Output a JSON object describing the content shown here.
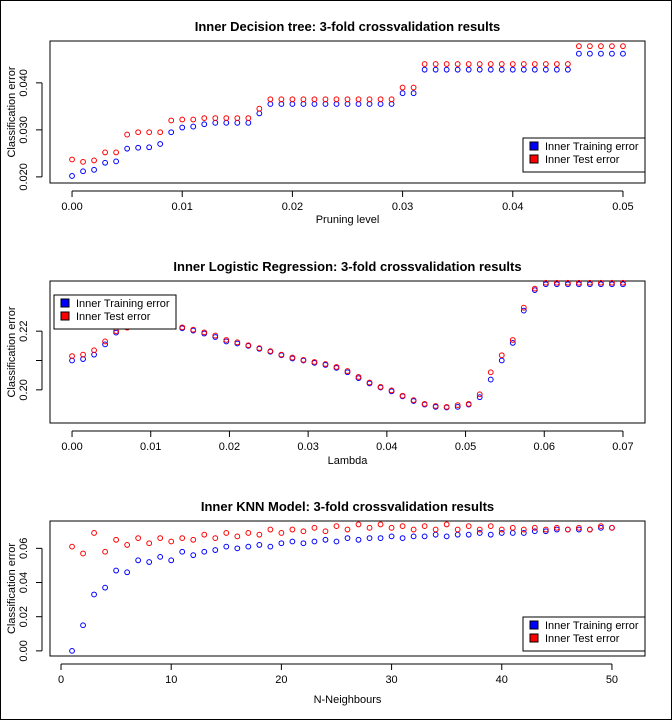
{
  "chart_data": [
    {
      "type": "scatter",
      "title": "Inner Decision tree: 3-fold crossvalidation results",
      "xlabel": "Pruning level",
      "ylabel": "Classification error",
      "xlim": [
        -0.002,
        0.052
      ],
      "ylim": [
        0.0187,
        0.0489
      ],
      "xticks": [
        0.0,
        0.01,
        0.02,
        0.03,
        0.04,
        0.05
      ],
      "xtick_labels": [
        "0.00",
        "0.01",
        "0.02",
        "0.03",
        "0.04",
        "0.05"
      ],
      "yticks": [
        0.02,
        0.03,
        0.04
      ],
      "ytick_labels": [
        "0.020",
        "0.030",
        "0.040"
      ],
      "legend": {
        "position": "bottom-right",
        "entries": [
          "Inner Training error",
          "Inner Test error"
        ]
      },
      "series": [
        {
          "name": "Inner Training error",
          "color": "#0000ff",
          "marker": "open-circle",
          "x": [
            0,
            0.001,
            0.002,
            0.003,
            0.004,
            0.005,
            0.006,
            0.007,
            0.008,
            0.009,
            0.01,
            0.011,
            0.012,
            0.013,
            0.014,
            0.015,
            0.016,
            0.017,
            0.018,
            0.019,
            0.02,
            0.021,
            0.022,
            0.023,
            0.024,
            0.025,
            0.026,
            0.027,
            0.028,
            0.029,
            0.03,
            0.031,
            0.032,
            0.033,
            0.034,
            0.035,
            0.036,
            0.037,
            0.038,
            0.039,
            0.04,
            0.041,
            0.042,
            0.043,
            0.044,
            0.045,
            0.046,
            0.047,
            0.048,
            0.049,
            0.05
          ],
          "y": [
            0.0202,
            0.0212,
            0.0215,
            0.023,
            0.0233,
            0.026,
            0.0262,
            0.0263,
            0.027,
            0.0295,
            0.0305,
            0.0307,
            0.0312,
            0.0315,
            0.0315,
            0.0315,
            0.0315,
            0.0335,
            0.0355,
            0.0355,
            0.0355,
            0.0355,
            0.0355,
            0.0355,
            0.0355,
            0.0355,
            0.0355,
            0.0355,
            0.0355,
            0.0355,
            0.0378,
            0.0378,
            0.0428,
            0.0428,
            0.0428,
            0.0428,
            0.0428,
            0.0428,
            0.0428,
            0.0428,
            0.0428,
            0.0428,
            0.0428,
            0.0428,
            0.0428,
            0.0428,
            0.0462,
            0.0462,
            0.0462,
            0.0462,
            0.0462
          ]
        },
        {
          "name": "Inner Test error",
          "color": "#ff0000",
          "marker": "open-circle",
          "x": [
            0,
            0.001,
            0.002,
            0.003,
            0.004,
            0.005,
            0.006,
            0.007,
            0.008,
            0.009,
            0.01,
            0.011,
            0.012,
            0.013,
            0.014,
            0.015,
            0.016,
            0.017,
            0.018,
            0.019,
            0.02,
            0.021,
            0.022,
            0.023,
            0.024,
            0.025,
            0.026,
            0.027,
            0.028,
            0.029,
            0.03,
            0.031,
            0.032,
            0.033,
            0.034,
            0.035,
            0.036,
            0.037,
            0.038,
            0.039,
            0.04,
            0.041,
            0.042,
            0.043,
            0.044,
            0.045,
            0.046,
            0.047,
            0.048,
            0.049,
            0.05
          ],
          "y": [
            0.0237,
            0.0232,
            0.0235,
            0.0252,
            0.0252,
            0.029,
            0.0295,
            0.0295,
            0.0295,
            0.032,
            0.0322,
            0.0322,
            0.0325,
            0.0325,
            0.0325,
            0.0325,
            0.0325,
            0.0345,
            0.0365,
            0.0365,
            0.0365,
            0.0365,
            0.0365,
            0.0365,
            0.0365,
            0.0365,
            0.0365,
            0.0365,
            0.0365,
            0.0365,
            0.039,
            0.039,
            0.044,
            0.044,
            0.044,
            0.044,
            0.044,
            0.044,
            0.044,
            0.044,
            0.044,
            0.044,
            0.044,
            0.044,
            0.044,
            0.044,
            0.0478,
            0.0478,
            0.0478,
            0.0478,
            0.0478
          ]
        }
      ]
    },
    {
      "type": "scatter",
      "title": "Inner Logistic Regression: 3-fold crossvalidation results",
      "xlabel": "Lambda",
      "ylabel": "Classification error",
      "xlim": [
        -0.0028,
        0.0728
      ],
      "ylim": [
        0.1887,
        0.2371
      ],
      "xticks": [
        0.0,
        0.01,
        0.02,
        0.03,
        0.04,
        0.05,
        0.06,
        0.07
      ],
      "xtick_labels": [
        "0.00",
        "0.01",
        "0.02",
        "0.03",
        "0.04",
        "0.05",
        "0.06",
        "0.07"
      ],
      "yticks": [
        0.2,
        0.21,
        0.22
      ],
      "ytick_labels": [
        "0.20",
        "",
        "0.22"
      ],
      "legend": {
        "position": "top-left",
        "entries": [
          "Inner Training error",
          "Inner Test error"
        ]
      },
      "series": [
        {
          "name": "Inner Training error",
          "color": "#0000ff",
          "marker": "open-circle",
          "x": [
            0,
            0.0014,
            0.0028,
            0.0042,
            0.0056,
            0.007,
            0.0084,
            0.0098,
            0.0112,
            0.0126,
            0.014,
            0.0154,
            0.0168,
            0.0182,
            0.0196,
            0.021,
            0.0224,
            0.0238,
            0.0252,
            0.0266,
            0.028,
            0.0294,
            0.0308,
            0.0322,
            0.0336,
            0.035,
            0.0364,
            0.0378,
            0.0392,
            0.0406,
            0.042,
            0.0434,
            0.0448,
            0.0462,
            0.0476,
            0.049,
            0.0504,
            0.0518,
            0.0532,
            0.0546,
            0.056,
            0.0574,
            0.0588,
            0.0602,
            0.0616,
            0.063,
            0.0644,
            0.0658,
            0.0672,
            0.0686,
            0.07
          ],
          "y": [
            0.21,
            0.2105,
            0.212,
            0.2155,
            0.2195,
            0.2225,
            0.2232,
            0.2232,
            0.2227,
            0.2218,
            0.221,
            0.2202,
            0.2192,
            0.218,
            0.2165,
            0.2158,
            0.215,
            0.214,
            0.213,
            0.2118,
            0.2107,
            0.21,
            0.2092,
            0.2085,
            0.2075,
            0.206,
            0.204,
            0.2022,
            0.2008,
            0.1995,
            0.1978,
            0.1962,
            0.195,
            0.1942,
            0.194,
            0.1942,
            0.195,
            0.1975,
            0.2035,
            0.21,
            0.216,
            0.227,
            0.234,
            0.236,
            0.236,
            0.236,
            0.236,
            0.236,
            0.236,
            0.236,
            0.236
          ]
        },
        {
          "name": "Inner Test error",
          "color": "#ff0000",
          "marker": "open-circle",
          "x": [
            0,
            0.0014,
            0.0028,
            0.0042,
            0.0056,
            0.007,
            0.0084,
            0.0098,
            0.0112,
            0.0126,
            0.014,
            0.0154,
            0.0168,
            0.0182,
            0.0196,
            0.021,
            0.0224,
            0.0238,
            0.0252,
            0.0266,
            0.028,
            0.0294,
            0.0308,
            0.0322,
            0.0336,
            0.035,
            0.0364,
            0.0378,
            0.0392,
            0.0406,
            0.042,
            0.0434,
            0.0448,
            0.0462,
            0.0476,
            0.049,
            0.0504,
            0.0518,
            0.0532,
            0.0546,
            0.056,
            0.0574,
            0.0588,
            0.0602,
            0.0616,
            0.063,
            0.0644,
            0.0658,
            0.0672,
            0.0686,
            0.07
          ],
          "y": [
            0.2115,
            0.212,
            0.2135,
            0.2165,
            0.22,
            0.2212,
            0.2238,
            0.2238,
            0.2232,
            0.2222,
            0.2213,
            0.2205,
            0.2196,
            0.2185,
            0.217,
            0.2162,
            0.2152,
            0.2142,
            0.2132,
            0.212,
            0.211,
            0.2102,
            0.2095,
            0.2088,
            0.2078,
            0.2064,
            0.2044,
            0.2025,
            0.201,
            0.1998,
            0.198,
            0.1965,
            0.1952,
            0.1945,
            0.1942,
            0.1948,
            0.1952,
            0.1985,
            0.206,
            0.2118,
            0.217,
            0.228,
            0.2345,
            0.2365,
            0.2365,
            0.2365,
            0.2365,
            0.2365,
            0.2365,
            0.2365,
            0.2365
          ]
        }
      ]
    },
    {
      "type": "scatter",
      "title": "Inner KNN Model: 3-fold crossvalidation results",
      "xlabel": "N-Neighbours",
      "ylabel": "Classification error",
      "xlim": [
        -1,
        53
      ],
      "ylim": [
        -0.003,
        0.076
      ],
      "xticks": [
        0,
        10,
        20,
        30,
        40,
        50
      ],
      "xtick_labels": [
        "0",
        "10",
        "20",
        "30",
        "40",
        "50"
      ],
      "yticks": [
        0.0,
        0.02,
        0.04,
        0.06
      ],
      "ytick_labels": [
        "0.00",
        "0.02",
        "0.04",
        "0.06"
      ],
      "legend": {
        "position": "bottom-right",
        "entries": [
          "Inner Training error",
          "Inner Test error"
        ]
      },
      "series": [
        {
          "name": "Inner Training error",
          "color": "#0000ff",
          "marker": "open-circle",
          "x": [
            1,
            2,
            3,
            4,
            5,
            6,
            7,
            8,
            9,
            10,
            11,
            12,
            13,
            14,
            15,
            16,
            17,
            18,
            19,
            20,
            21,
            22,
            23,
            24,
            25,
            26,
            27,
            28,
            29,
            30,
            31,
            32,
            33,
            34,
            35,
            36,
            37,
            38,
            39,
            40,
            41,
            42,
            43,
            44,
            45,
            46,
            47,
            48,
            49,
            50
          ],
          "y": [
            0.0,
            0.015,
            0.033,
            0.037,
            0.047,
            0.046,
            0.053,
            0.052,
            0.055,
            0.053,
            0.058,
            0.056,
            0.058,
            0.059,
            0.061,
            0.06,
            0.061,
            0.062,
            0.061,
            0.063,
            0.064,
            0.063,
            0.064,
            0.065,
            0.064,
            0.066,
            0.065,
            0.066,
            0.066,
            0.067,
            0.066,
            0.067,
            0.067,
            0.068,
            0.067,
            0.068,
            0.068,
            0.069,
            0.068,
            0.069,
            0.069,
            0.069,
            0.07,
            0.07,
            0.071,
            0.071,
            0.071,
            0.071,
            0.072,
            0.072
          ]
        },
        {
          "name": "Inner Test error",
          "color": "#ff0000",
          "marker": "open-circle",
          "x": [
            1,
            2,
            3,
            4,
            5,
            6,
            7,
            8,
            9,
            10,
            11,
            12,
            13,
            14,
            15,
            16,
            17,
            18,
            19,
            20,
            21,
            22,
            23,
            24,
            25,
            26,
            27,
            28,
            29,
            30,
            31,
            32,
            33,
            34,
            35,
            36,
            37,
            38,
            39,
            40,
            41,
            42,
            43,
            44,
            45,
            46,
            47,
            48,
            49,
            50
          ],
          "y": [
            0.061,
            0.057,
            0.069,
            0.058,
            0.065,
            0.062,
            0.066,
            0.063,
            0.066,
            0.064,
            0.066,
            0.065,
            0.068,
            0.066,
            0.069,
            0.067,
            0.069,
            0.068,
            0.071,
            0.069,
            0.071,
            0.07,
            0.072,
            0.07,
            0.073,
            0.071,
            0.074,
            0.072,
            0.074,
            0.072,
            0.073,
            0.071,
            0.073,
            0.071,
            0.074,
            0.071,
            0.073,
            0.071,
            0.073,
            0.071,
            0.072,
            0.071,
            0.072,
            0.071,
            0.072,
            0.071,
            0.072,
            0.071,
            0.073,
            0.072
          ]
        }
      ]
    }
  ]
}
